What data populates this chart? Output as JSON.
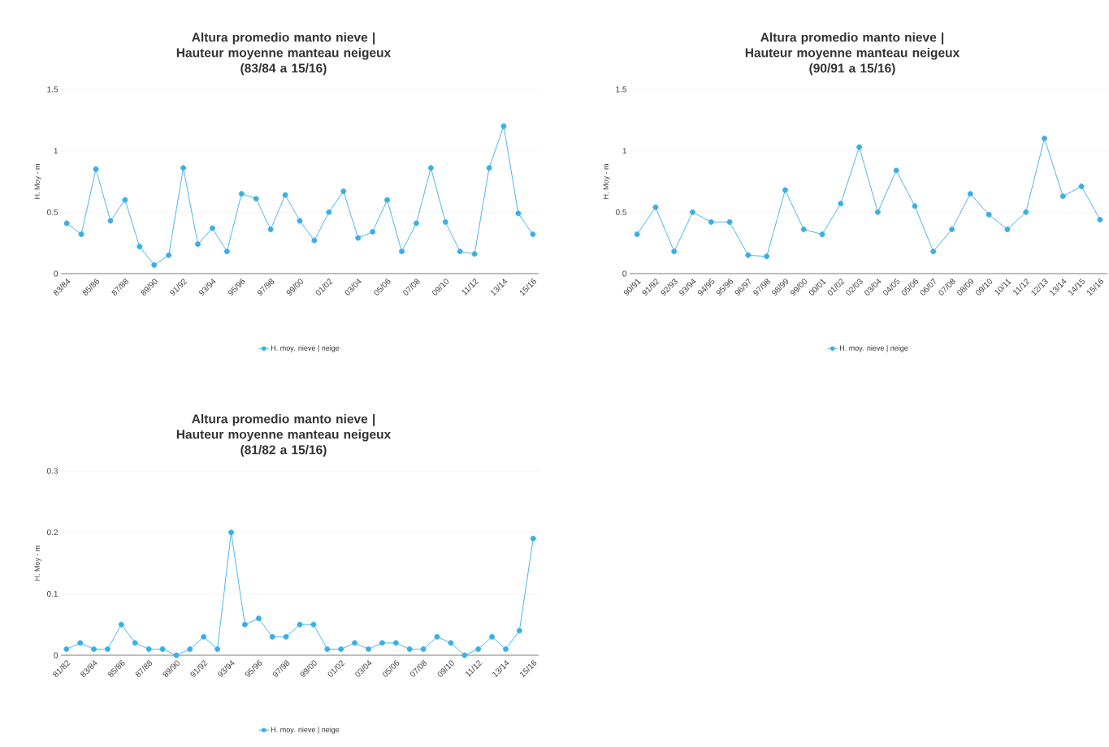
{
  "chart_data": [
    {
      "type": "line",
      "title": "Altura promedio manto nieve | Hauteur moyenne manteau neigeux",
      "subtitle": "(83/84 a 15/16)",
      "ylabel": "H. Moy - m",
      "categories": [
        "83/84",
        null,
        "85/86",
        null,
        "87/88",
        null,
        "89/90",
        null,
        "91/92",
        null,
        "93/94",
        null,
        "95/96",
        null,
        "97/98",
        null,
        "99/00",
        null,
        "01/02",
        null,
        "03/04",
        null,
        "05/06",
        null,
        "07/08",
        null,
        "09/10",
        null,
        "11/12",
        null,
        "13/14",
        null,
        "15/16"
      ],
      "series": [
        {
          "name": "H. moy. nieve | neige",
          "color": "#3aaee6",
          "values": [
            0.41,
            0.32,
            0.85,
            0.43,
            0.6,
            0.22,
            0.07,
            0.15,
            0.86,
            0.24,
            0.37,
            0.18,
            0.65,
            0.61,
            0.36,
            0.64,
            0.43,
            0.27,
            0.5,
            0.67,
            0.29,
            0.34,
            0.6,
            0.18,
            0.41,
            0.86,
            0.42,
            0.18,
            0.16,
            0.86,
            1.2,
            0.49,
            0.32
          ]
        }
      ],
      "ylim": [
        0,
        1.5
      ],
      "yticks": [
        0,
        0.5,
        1,
        1.5
      ],
      "grid": "y",
      "legend": "bottom",
      "marker": "circle"
    },
    {
      "type": "line",
      "title": "Altura promedio manto nieve | Hauteur moyenne manteau neigeux",
      "subtitle": "(90/91 a 15/16)",
      "ylabel": "H. Moy - m",
      "categories": [
        "90/91",
        "91/92",
        "92/93",
        "93/94",
        "94/95",
        "95/96",
        "96/97",
        "97/98",
        "98/99",
        "99/00",
        "00/01",
        "01/02",
        "02/03",
        "03/04",
        "04/05",
        "05/06",
        "06/07",
        "07/08",
        "08/09",
        "09/10",
        "10/11",
        "11/12",
        "12/13",
        "13/14",
        "14/15",
        "15/16"
      ],
      "series": [
        {
          "name": "H. moy. nieve | neige",
          "color": "#3aaee6",
          "values": [
            0.32,
            0.54,
            0.18,
            0.5,
            0.42,
            0.42,
            0.15,
            0.14,
            0.68,
            0.36,
            0.32,
            0.57,
            1.03,
            0.5,
            0.84,
            0.55,
            0.18,
            0.36,
            0.65,
            0.48,
            0.36,
            0.5,
            1.1,
            0.63,
            0.71,
            0.44
          ]
        }
      ],
      "ylim": [
        0,
        1.5
      ],
      "yticks": [
        0,
        0.5,
        1,
        1.5
      ],
      "grid": "y",
      "legend": "bottom",
      "marker": "circle"
    },
    {
      "type": "line",
      "title": "Altura promedio manto nieve | Hauteur moyenne manteau neigeux",
      "subtitle": "(81/82 a 15/16)",
      "ylabel": "H. Moy - m",
      "categories": [
        "81/82",
        null,
        "83/84",
        null,
        "85/86",
        null,
        "87/88",
        null,
        "89/90",
        null,
        "91/92",
        null,
        "93/94",
        null,
        "95/96",
        null,
        "97/98",
        null,
        "99/00",
        null,
        "01/02",
        null,
        "03/04",
        null,
        "05/06",
        null,
        "07/08",
        null,
        "09/10",
        null,
        "11/12",
        null,
        "13/14",
        null,
        "15/16"
      ],
      "series": [
        {
          "name": "H. moy. nieve | neige",
          "color": "#3aaee6",
          "values": [
            0.01,
            0.02,
            0.01,
            0.01,
            0.05,
            0.02,
            0.01,
            0.01,
            0,
            0.01,
            0.03,
            0.01,
            0.2,
            0.05,
            0.06,
            0.03,
            0.03,
            0.05,
            0.05,
            0.01,
            0.01,
            0.02,
            0.01,
            0.02,
            0.02,
            0.01,
            0.01,
            0.03,
            0.02,
            0,
            0.01,
            0.03,
            0.01,
            0.04,
            0.19
          ]
        }
      ],
      "ylim": [
        0,
        0.3
      ],
      "yticks": [
        0,
        0.1,
        0.2,
        0.3
      ],
      "grid": "y",
      "legend": "bottom",
      "marker": "circle"
    }
  ]
}
